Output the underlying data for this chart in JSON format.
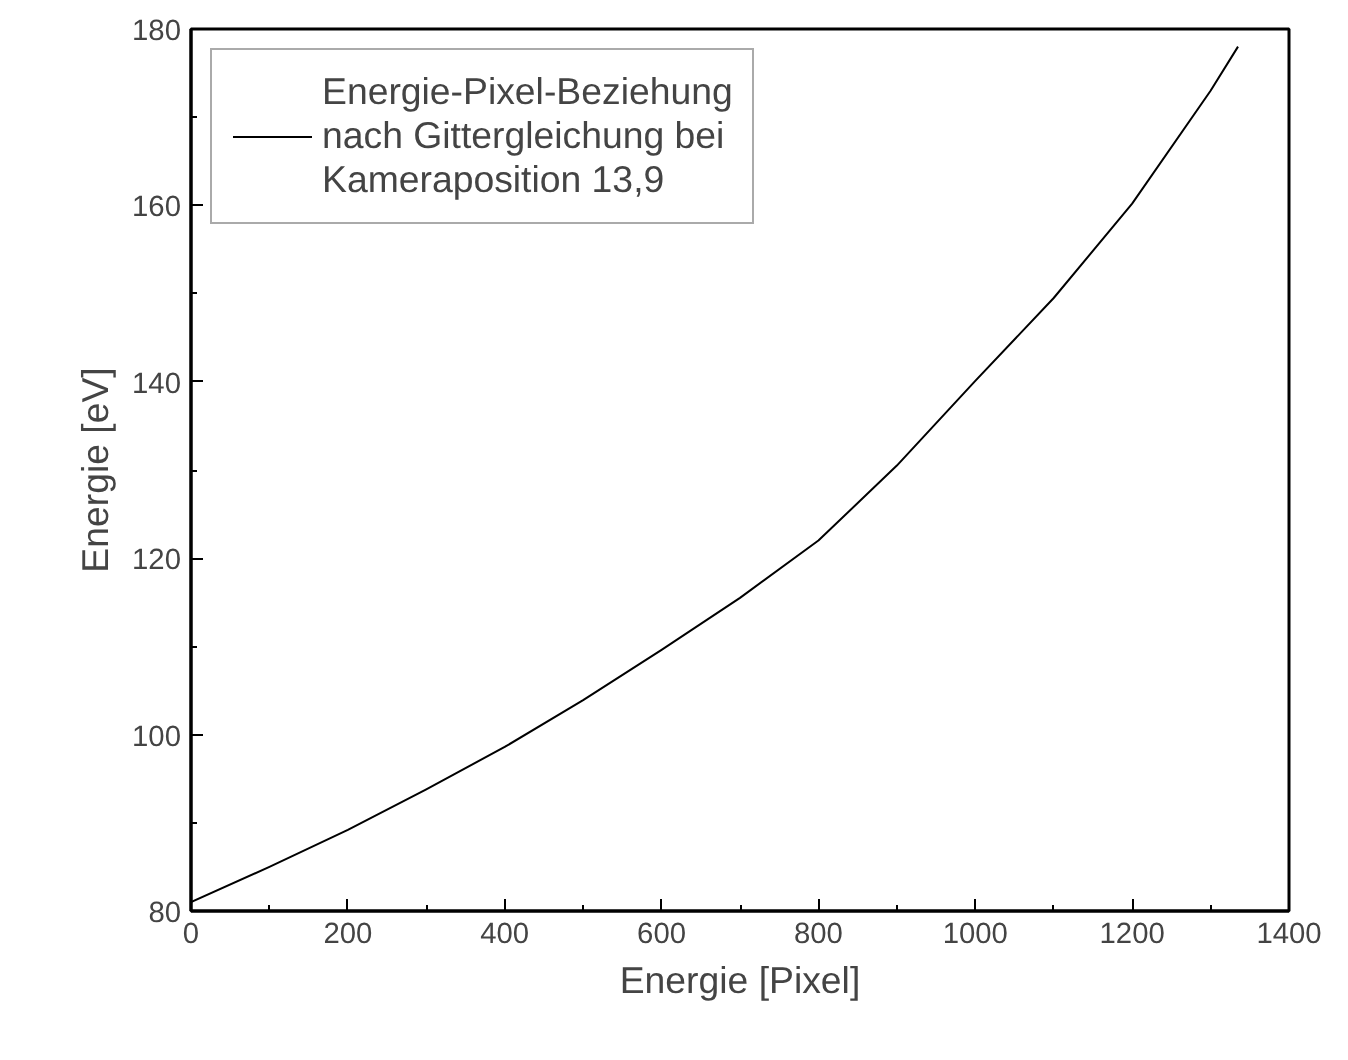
{
  "chart_data": {
    "type": "line",
    "xlabel": "Energie [Pixel]",
    "ylabel": "Energie [eV]",
    "x": [
      0,
      100,
      200,
      300,
      400,
      500,
      600,
      700,
      800,
      900,
      1000,
      1100,
      1200,
      1300,
      1335
    ],
    "series": [
      {
        "name": "Energie-Pixel-Beziehung\nnach Gittergleichung bei\nKameraposition 13,9",
        "color": "#000000",
        "values": [
          81,
          85,
          89.2,
          93.8,
          98.6,
          103.9,
          109.6,
          115.5,
          122,
          130.5,
          140.1,
          149.5,
          160.2,
          173,
          178
        ]
      }
    ],
    "xlim": [
      0,
      1400
    ],
    "xticks": [
      0,
      200,
      400,
      600,
      800,
      1000,
      1200,
      1400
    ],
    "ylim": [
      80,
      180
    ],
    "yticks": [
      80,
      100,
      120,
      140,
      160,
      180
    ],
    "grid": false,
    "legend": "top left",
    "marker": "none",
    "line_style": "solid"
  }
}
